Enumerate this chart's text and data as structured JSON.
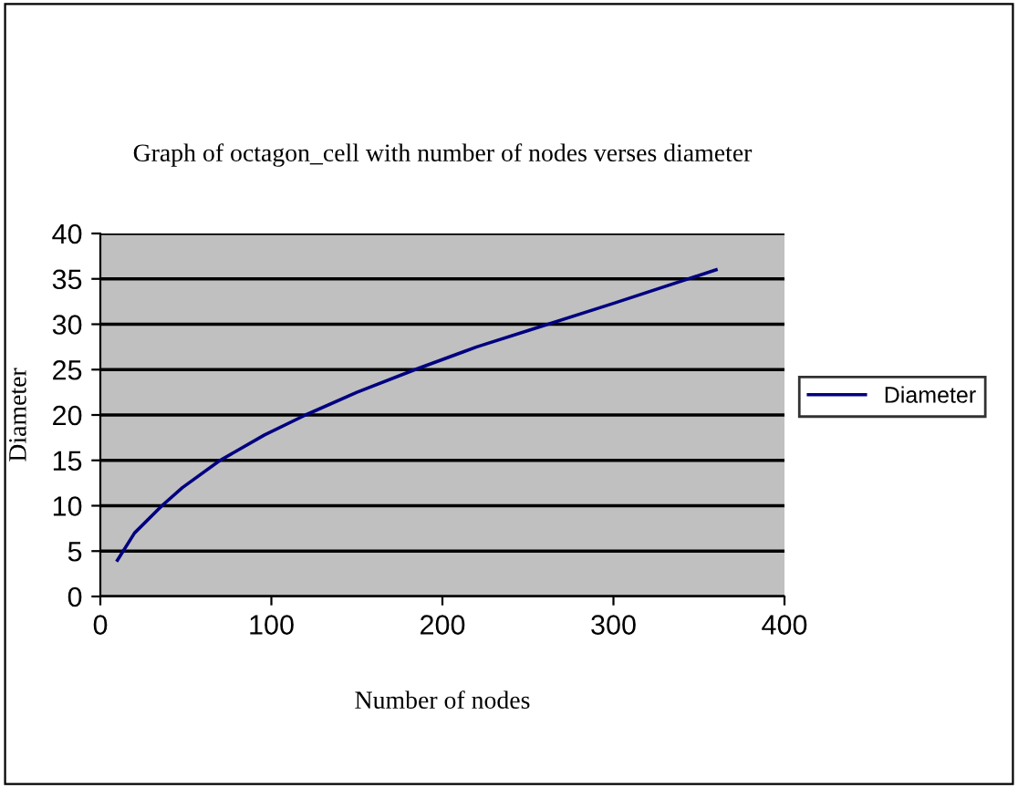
{
  "chart_data": {
    "type": "line",
    "title": "Graph of octagon_cell with number of nodes verses diameter",
    "xlabel": "Number of nodes",
    "ylabel": "Diameter",
    "x": [
      10,
      20,
      36,
      48,
      70,
      96,
      120,
      150,
      184,
      220,
      250,
      300,
      360
    ],
    "series": [
      {
        "name": "Diameter",
        "color": "#000080",
        "values": [
          4,
          7,
          10,
          12,
          15,
          17.8,
          20,
          22.5,
          25,
          27.5,
          29.3,
          32.3,
          36
        ]
      }
    ],
    "xlim": [
      0,
      400
    ],
    "xticks": [
      0,
      100,
      200,
      300,
      400
    ],
    "ylim": [
      0,
      40
    ],
    "yticks": [
      0,
      5,
      10,
      15,
      20,
      25,
      30,
      35,
      40
    ],
    "grid": "y",
    "legend": "right",
    "marker": "none",
    "line_style": "solid"
  }
}
